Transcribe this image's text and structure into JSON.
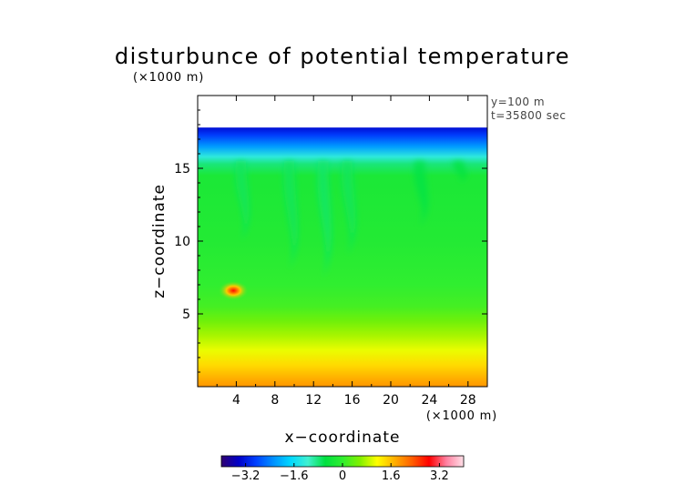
{
  "chart_data": {
    "type": "heatmap",
    "title": "disturbunce of potential temperature",
    "xlabel": "x−coordinate",
    "ylabel": "z−coordinate",
    "x_unit": "(×1000 m)",
    "y_unit": "(×1000 m)",
    "xlim": [
      0,
      30
    ],
    "ylim": [
      0,
      20
    ],
    "x_ticks": [
      4,
      8,
      12,
      16,
      20,
      24,
      28
    ],
    "y_ticks": [
      5,
      10,
      15
    ],
    "annotations": [
      "y=100 m",
      "t=35800 sec"
    ],
    "colorbar": {
      "ticks": [
        -3.2,
        -1.6,
        0,
        1.6,
        3.2
      ],
      "tick_labels": [
        "−3.2",
        "−1.6",
        "0",
        "1.6",
        "3.2"
      ],
      "range": [
        -4,
        4
      ],
      "colormap": [
        "#300070",
        "#0000c8",
        "#0040ff",
        "#0090ff",
        "#00d8ff",
        "#40f0d0",
        "#00e040",
        "#30ee30",
        "#80f000",
        "#ffff00",
        "#ffb000",
        "#ff6000",
        "#ff0000",
        "#ff80a0",
        "#ffe0e8"
      ]
    },
    "field": {
      "data_top_z": 17.8,
      "vertical_profile": [
        {
          "z": 0.0,
          "value": 1.9
        },
        {
          "z": 0.5,
          "value": 1.75
        },
        {
          "z": 1.5,
          "value": 1.4
        },
        {
          "z": 2.5,
          "value": 1.05
        },
        {
          "z": 3.5,
          "value": 0.75
        },
        {
          "z": 4.5,
          "value": 0.45
        },
        {
          "z": 5.5,
          "value": 0.15
        },
        {
          "z": 7.0,
          "value": 0.0
        },
        {
          "z": 10.0,
          "value": -0.15
        },
        {
          "z": 14.5,
          "value": -0.25
        },
        {
          "z": 15.3,
          "value": -0.8
        },
        {
          "z": 15.8,
          "value": -1.3
        },
        {
          "z": 16.5,
          "value": -2.2
        },
        {
          "z": 17.3,
          "value": -2.9
        },
        {
          "z": 17.8,
          "value": -3.3
        }
      ],
      "plumes": [
        {
          "x": 4.5,
          "z_range": [
            10.0,
            15.5
          ],
          "value": -0.7
        },
        {
          "x": 9.5,
          "z_range": [
            8.0,
            15.5
          ],
          "value": -0.7
        },
        {
          "x": 13.0,
          "z_range": [
            7.5,
            15.5
          ],
          "value": -0.75
        },
        {
          "x": 15.5,
          "z_range": [
            9.0,
            15.5
          ],
          "value": -0.7
        },
        {
          "x": 23.0,
          "z_range": [
            11.0,
            15.5
          ],
          "value": -0.6
        },
        {
          "x": 27.0,
          "z_range": [
            14.0,
            15.5
          ],
          "value": -0.5
        }
      ],
      "warm_anomaly": {
        "x": 3.7,
        "z": 6.6,
        "value": 2.8
      }
    }
  }
}
